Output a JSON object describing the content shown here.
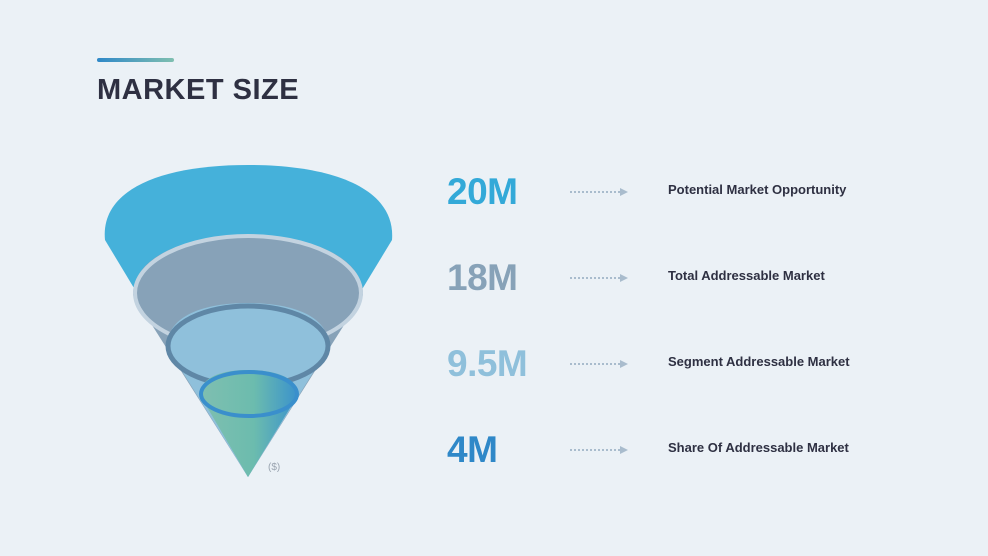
{
  "header": {
    "title": "MARKET SIZE"
  },
  "funnel": {
    "unit": "($)"
  },
  "colors": {
    "accent": "#2f88c8",
    "level1": "#45b1da",
    "level2": "#87a2b8",
    "level3": "#8fc0db",
    "level4": "#2f88c8",
    "text": "#2e3042"
  },
  "metrics": [
    {
      "value": "20M",
      "label": "Potential Market Opportunity",
      "color": "#33a9d8"
    },
    {
      "value": "18M",
      "label": "Total Addressable Market",
      "color": "#87a2b8"
    },
    {
      "value": "9.5M",
      "label": "Segment Addressable Market",
      "color": "#8fc0db"
    },
    {
      "value": "4M",
      "label": "Share Of Addressable Market",
      "color": "#2f88c8"
    }
  ]
}
